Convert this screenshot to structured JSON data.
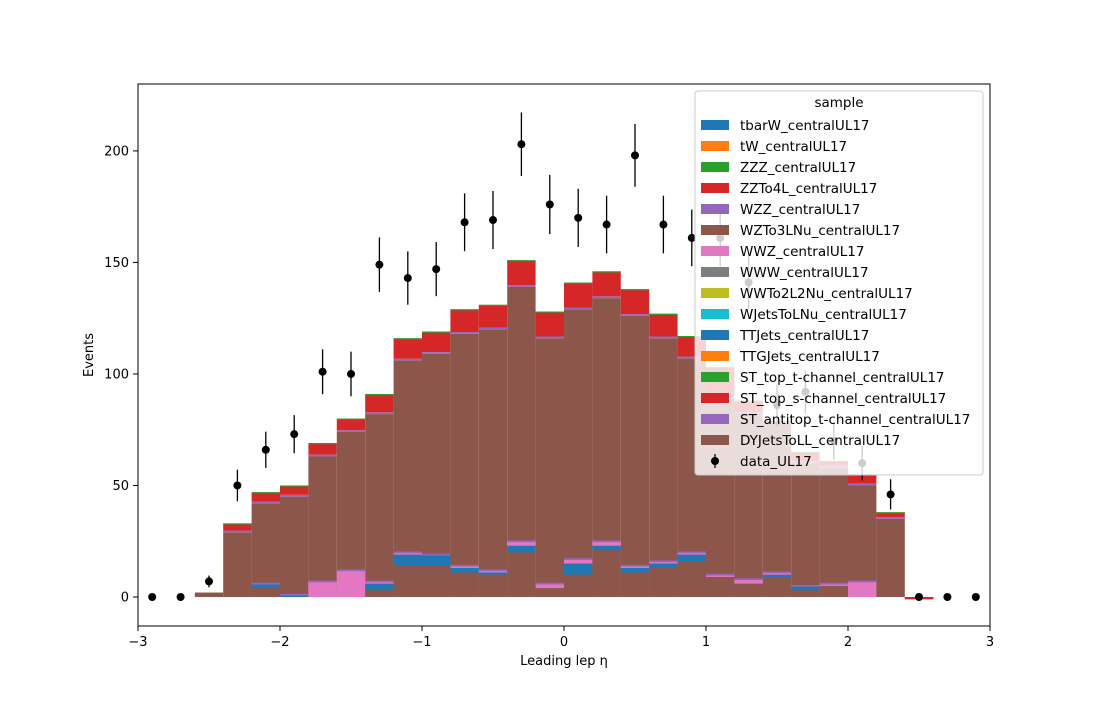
{
  "chart_data": {
    "type": "bar",
    "subtype": "stacked-histogram-with-data-points",
    "xlabel": "Leading lep η",
    "ylabel": "Events",
    "xlim": [
      -3,
      3
    ],
    "ylim": [
      -13,
      230
    ],
    "x_ticks": [
      -3,
      -2,
      -1,
      0,
      1,
      2,
      3
    ],
    "x_tick_labels": [
      "−3",
      "−2",
      "−1",
      "0",
      "1",
      "2",
      "3"
    ],
    "y_ticks": [
      0,
      50,
      100,
      150,
      200
    ],
    "y_tick_labels": [
      "0",
      "50",
      "100",
      "150",
      "200"
    ],
    "bin_edges": [
      -2.6,
      -2.4,
      -2.2,
      -2.0,
      -1.8,
      -1.6,
      -1.4,
      -1.2,
      -1.0,
      -0.8,
      -0.6,
      -0.4,
      -0.2,
      0.0,
      0.2,
      0.4,
      0.6,
      0.8,
      1.0,
      1.2,
      1.4,
      1.6,
      1.8,
      2.0,
      2.2,
      2.4,
      2.6
    ],
    "legend": {
      "title": "sample",
      "position": "upper right",
      "entries": [
        {
          "label": "tbarW_centralUL17",
          "color": "#1f77b4"
        },
        {
          "label": "tW_centralUL17",
          "color": "#ff7f0e"
        },
        {
          "label": "ZZZ_centralUL17",
          "color": "#2ca02c"
        },
        {
          "label": "ZZTo4L_centralUL17",
          "color": "#d62728"
        },
        {
          "label": "WZZ_centralUL17",
          "color": "#9467bd"
        },
        {
          "label": "WZTo3LNu_centralUL17",
          "color": "#8c564b"
        },
        {
          "label": "WWZ_centralUL17",
          "color": "#e377c2"
        },
        {
          "label": "WWW_centralUL17",
          "color": "#7f7f7f"
        },
        {
          "label": "WWTo2L2Nu_centralUL17",
          "color": "#bcbd22"
        },
        {
          "label": "WJetsToLNu_centralUL17",
          "color": "#17becf"
        },
        {
          "label": "TTJets_centralUL17",
          "color": "#1f77b4"
        },
        {
          "label": "TTGJets_centralUL17",
          "color": "#ff7f0e"
        },
        {
          "label": "ST_top_t-channel_centralUL17",
          "color": "#2ca02c"
        },
        {
          "label": "ST_top_s-channel_centralUL17",
          "color": "#d62728"
        },
        {
          "label": "ST_antitop_t-channel_centralUL17",
          "color": "#9467bd"
        },
        {
          "label": "DYJetsToLL_centralUL17",
          "color": "#8c564b"
        },
        {
          "label": "data_UL17",
          "color": "#000000",
          "marker": "errorbar"
        }
      ]
    },
    "main_stack": {
      "dy_top": [
        2,
        29,
        42,
        45,
        63,
        74,
        82,
        106,
        109,
        118,
        120,
        139,
        116,
        129,
        134,
        126,
        116,
        107,
        89,
        82,
        79,
        60,
        58,
        50,
        35,
        -1
      ],
      "total": [
        2,
        33,
        47,
        50,
        69,
        80,
        91,
        116,
        119,
        129,
        131,
        151,
        128,
        141,
        146,
        138,
        127,
        117,
        103,
        88,
        79,
        65,
        61,
        55,
        38,
        -1
      ]
    },
    "minor_stack": {
      "ttjets_base": [
        0,
        0,
        4,
        0,
        0,
        0,
        3,
        14,
        14,
        11,
        10,
        20,
        4,
        10,
        21,
        11,
        13,
        16,
        9,
        6,
        9,
        3,
        5,
        0,
        0,
        0
      ],
      "ttjets_top": [
        0,
        0,
        6,
        1,
        0,
        0,
        6,
        19,
        19,
        13,
        11,
        23,
        4,
        15,
        23,
        13,
        15,
        19,
        9,
        6,
        10,
        5,
        5,
        0,
        0,
        0
      ],
      "pink_top": [
        0,
        0,
        6,
        1,
        7,
        12,
        7,
        20,
        19,
        14,
        12,
        25,
        6,
        17,
        25,
        14,
        16,
        20,
        10,
        8,
        11,
        5,
        6,
        7,
        0,
        0
      ]
    },
    "data": {
      "x": [
        -2.9,
        -2.7,
        -2.5,
        -2.3,
        -2.1,
        -1.9,
        -1.7,
        -1.5,
        -1.3,
        -1.1,
        -0.9,
        -0.7,
        -0.5,
        -0.3,
        -0.1,
        0.1,
        0.3,
        0.5,
        0.7,
        0.9,
        1.1,
        1.3,
        1.5,
        1.7,
        1.9,
        2.1,
        2.3,
        2.5,
        2.7,
        2.9
      ],
      "y": [
        0,
        0,
        7,
        50,
        66,
        73,
        101,
        100,
        149,
        143,
        147,
        168,
        169,
        203,
        176,
        170,
        167,
        198,
        167,
        161,
        161,
        141,
        86,
        92,
        70,
        60,
        46,
        0,
        0,
        0
      ]
    }
  }
}
